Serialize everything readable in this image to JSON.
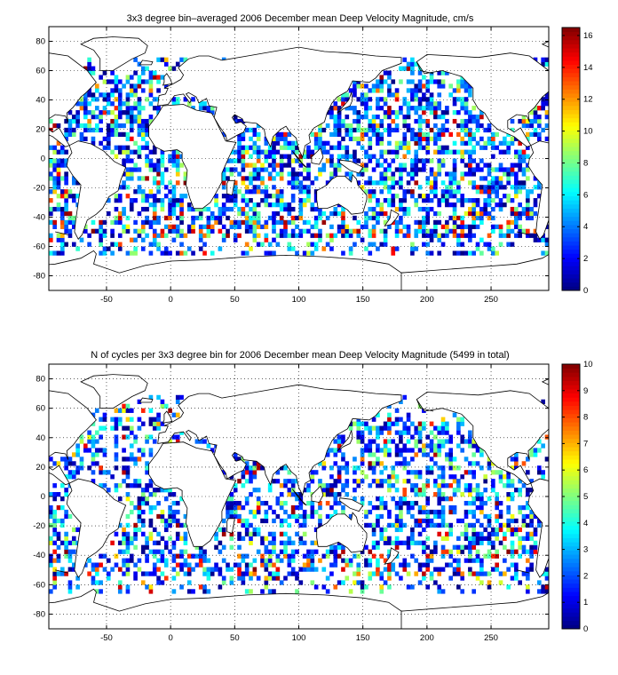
{
  "chart_data": [
    {
      "type": "heatmap",
      "title": "3x3 degree bin–averaged 2006 December mean Deep Velocity Magnitude, cm/s",
      "xlim": [
        -95,
        295
      ],
      "ylim": [
        -90,
        90
      ],
      "x_ticks": [
        "-50",
        "0",
        "50",
        "100",
        "150",
        "200",
        "250"
      ],
      "x_tick_values": [
        -50,
        0,
        50,
        100,
        150,
        200,
        250
      ],
      "y_ticks": [
        "80",
        "60",
        "40",
        "20",
        "0",
        "-20",
        "-40",
        "-60",
        "-80"
      ],
      "y_tick_values": [
        80,
        60,
        40,
        20,
        0,
        -20,
        -40,
        -60,
        -80
      ],
      "colorbar": {
        "min": 0,
        "max": 16.5,
        "ticks": [
          "0",
          "2",
          "4",
          "6",
          "8",
          "10",
          "12",
          "14",
          "16"
        ],
        "tick_values": [
          0,
          2,
          4,
          6,
          8,
          10,
          12,
          14,
          16
        ]
      },
      "grid": true,
      "colormap": "jet",
      "bin_size_deg": 3,
      "seed": 11,
      "density": 0.55,
      "hot_fraction": 0.1
    },
    {
      "type": "heatmap",
      "title": "N of cycles per 3x3 degree bin for 2006 December mean Deep Velocity Magnitude (5499 in total)",
      "xlim": [
        -95,
        295
      ],
      "ylim": [
        -90,
        90
      ],
      "x_ticks": [
        "-50",
        "0",
        "50",
        "100",
        "150",
        "200",
        "250"
      ],
      "x_tick_values": [
        -50,
        0,
        50,
        100,
        150,
        200,
        250
      ],
      "y_ticks": [
        "80",
        "60",
        "40",
        "20",
        "0",
        "-20",
        "-40",
        "-60",
        "-80"
      ],
      "y_tick_values": [
        80,
        60,
        40,
        20,
        0,
        -20,
        -40,
        -60,
        -80
      ],
      "colorbar": {
        "min": 0,
        "max": 10,
        "ticks": [
          "0",
          "1",
          "2",
          "3",
          "4",
          "5",
          "6",
          "7",
          "8",
          "9",
          "10"
        ],
        "tick_values": [
          0,
          1,
          2,
          3,
          4,
          5,
          6,
          7,
          8,
          9,
          10
        ]
      },
      "grid": true,
      "colormap": "jet",
      "bin_size_deg": 3,
      "seed": 29,
      "density": 0.45,
      "hot_fraction": 0.12
    }
  ]
}
